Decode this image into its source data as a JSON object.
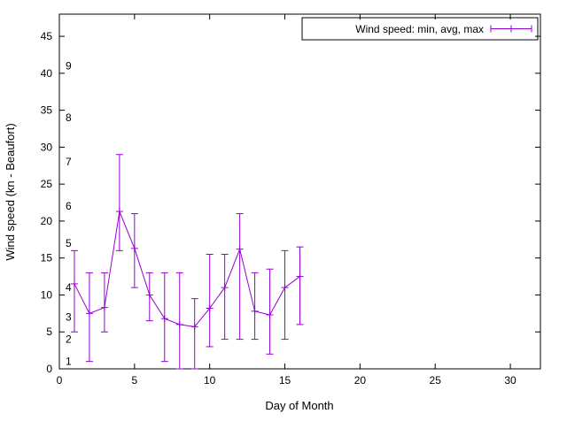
{
  "window": {
    "background": "#ffffff"
  },
  "chart_data": {
    "type": "line",
    "subtype": "yerrorlines",
    "xlabel": "Day of Month",
    "ylabel": "Wind speed (kn - Beaufort)",
    "legend": {
      "label": "Wind speed: min, avg, max",
      "position": "top-right",
      "boxed": true
    },
    "xlim": [
      0,
      32
    ],
    "ylim": [
      0,
      48
    ],
    "xticks": [
      0,
      5,
      10,
      15,
      20,
      25,
      30
    ],
    "yticks": [
      0,
      5,
      10,
      15,
      20,
      25,
      30,
      35,
      40,
      45
    ],
    "beaufort_axis": {
      "labels": [
        "1",
        "2",
        "3",
        "4",
        "5",
        "6",
        "7",
        "8",
        "9"
      ],
      "kn_positions": [
        1,
        4,
        7,
        11,
        17,
        22,
        28,
        34,
        41
      ]
    },
    "grid": false,
    "axis_color": "#000000",
    "series": [
      {
        "name": "Wind speed: min, avg, max",
        "color": "#9400d3",
        "marker": "plus",
        "x": [
          1,
          2,
          3,
          4,
          5,
          6,
          7,
          8,
          9,
          10,
          11,
          12,
          13,
          14,
          15,
          16
        ],
        "avg": [
          11.5,
          7.5,
          8.3,
          21.3,
          16.3,
          10,
          6.8,
          6,
          5.7,
          8.2,
          11,
          16.2,
          7.8,
          7.3,
          11,
          12.5
        ],
        "min": [
          5,
          1,
          5,
          16,
          11,
          6.5,
          1,
          0,
          0,
          3,
          4,
          4,
          4,
          2,
          4,
          6
        ],
        "max": [
          16,
          13,
          13,
          29,
          21,
          13,
          13,
          13,
          9.5,
          15.5,
          15.5,
          21,
          13,
          13.5,
          16,
          16.5
        ]
      }
    ]
  }
}
